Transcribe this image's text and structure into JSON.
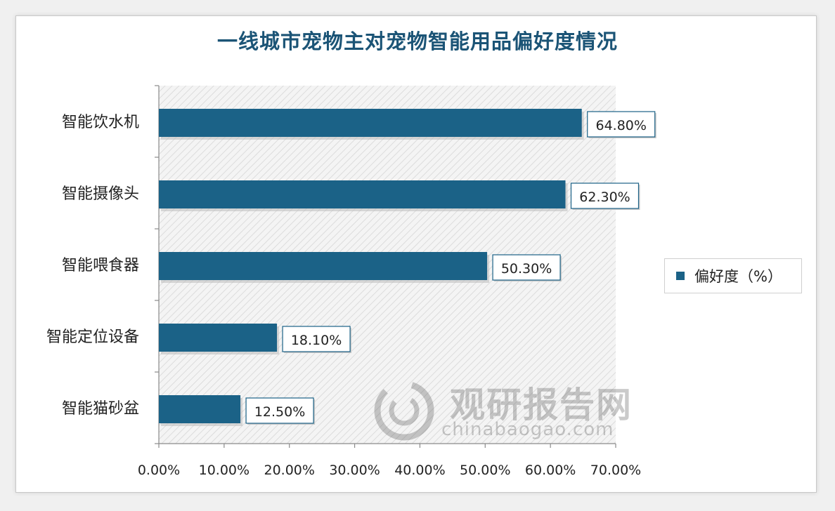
{
  "chart_data": {
    "type": "bar",
    "orientation": "horizontal",
    "title": "一线城市宠物主对宠物智能用品偏好度情况",
    "categories": [
      "智能饮水机",
      "智能摄像头",
      "智能喂食器",
      "智能定位设备",
      "智能猫砂盆"
    ],
    "series": [
      {
        "name": "偏好度（%）",
        "values": [
          64.8,
          62.3,
          50.3,
          18.1,
          12.5
        ]
      }
    ],
    "data_labels": [
      "64.80%",
      "62.30%",
      "50.30%",
      "18.10%",
      "12.50%"
    ],
    "x_ticks": [
      "0.00%",
      "10.00%",
      "20.00%",
      "30.00%",
      "40.00%",
      "50.00%",
      "60.00%",
      "70.00%"
    ],
    "xlim": [
      0,
      70
    ],
    "xlabel": "",
    "ylabel": "",
    "grid": false,
    "legend_position": "right",
    "bar_color": "#1b6287"
  },
  "legend": {
    "label": "偏好度（%）"
  },
  "watermark": {
    "cn": "观研报告网",
    "en": "chinabaogao.com"
  }
}
